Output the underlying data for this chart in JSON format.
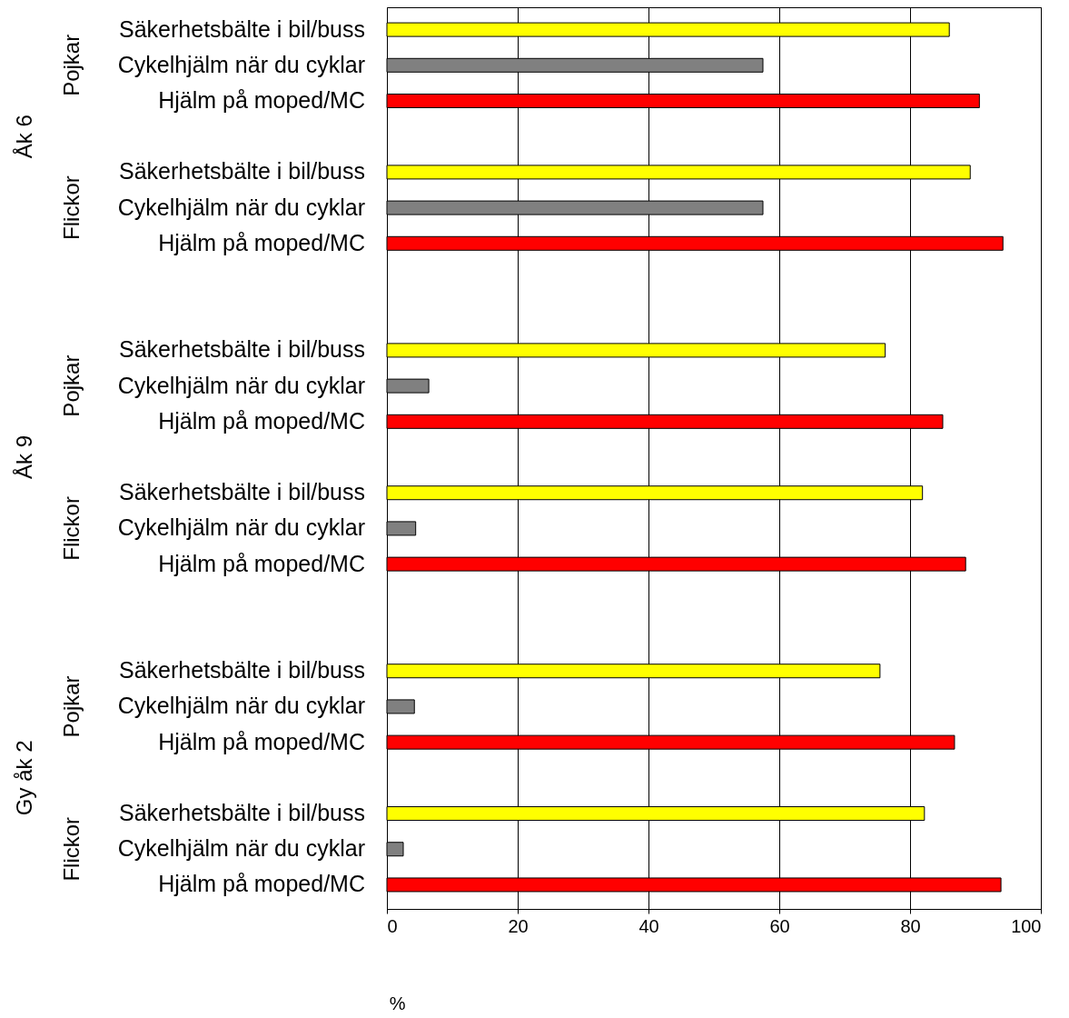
{
  "chart_data": {
    "type": "bar",
    "orientation": "horizontal",
    "xlabel": "%",
    "categories": [
      "Säkerhetsbälte i bil/buss",
      "Cykelhjälm när du cyklar",
      "Hjälm på moped/MC",
      "Säkerhetsbälte i bil/buss",
      "Cykelhjälm när du cyklar",
      "Hjälm på moped/MC",
      "Säkerhetsbälte i bil/buss",
      "Cykelhjälm när du cyklar",
      "Hjälm på moped/MC",
      "Säkerhetsbälte i bil/buss",
      "Cykelhjälm när du cyklar",
      "Hjälm på moped/MC",
      "Säkerhetsbälte i bil/buss",
      "Cykelhjälm när du cyklar",
      "Hjälm på moped/MC",
      "Säkerhetsbälte i bil/buss",
      "Cykelhjälm när du cyklar",
      "Hjälm på moped/MC"
    ],
    "values": [
      86.0,
      57.5,
      90.6,
      89.2,
      57.5,
      94.2,
      76.2,
      6.4,
      85.0,
      81.9,
      4.4,
      88.5,
      75.4,
      4.2,
      86.8,
      82.2,
      2.5,
      93.9
    ],
    "colors": [
      "#ffff00",
      "#808080",
      "#ff0000",
      "#ffff00",
      "#808080",
      "#ff0000",
      "#ffff00",
      "#808080",
      "#ff0000",
      "#ffff00",
      "#808080",
      "#ff0000",
      "#ffff00",
      "#808080",
      "#ff0000",
      "#ffff00",
      "#808080",
      "#ff0000"
    ],
    "annotations": [
      "Pojkar",
      "Flickor",
      "Pojkar",
      "Flickor",
      "Pojkar",
      "Flickor",
      "Åk 6",
      "Åk 9",
      "Gy åk 2"
    ],
    "xlim": [
      0,
      100
    ],
    "xticks": [
      0,
      20,
      40,
      60,
      80,
      100
    ],
    "grid": "x"
  }
}
